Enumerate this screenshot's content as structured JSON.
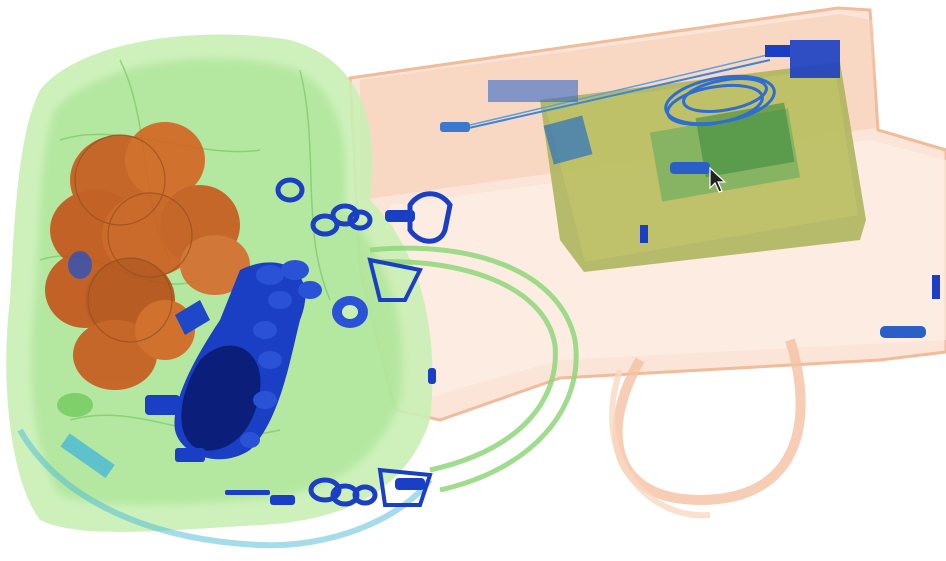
{
  "image": {
    "kind": "x-ray-baggage-scan",
    "palette": {
      "background": "#ffffff",
      "organic_orange": "#c9561a",
      "organic_light": "#f6c8a8",
      "mixed_green": "#7ed36b",
      "mixed_green_light": "#c9f0b5",
      "metal_blue": "#1a3fc4",
      "metal_blue_dark": "#0b1f7a",
      "panel_olive": "#a9b356",
      "cyan": "#49b9d8"
    },
    "objects": [
      "left-soft-bag",
      "organic-cluster",
      "metal-cluster",
      "carabiners",
      "bag-handle-loop",
      "right-bag",
      "electronics-panel",
      "cable-coil",
      "right-bag-handle",
      "pointer-cursor"
    ]
  }
}
